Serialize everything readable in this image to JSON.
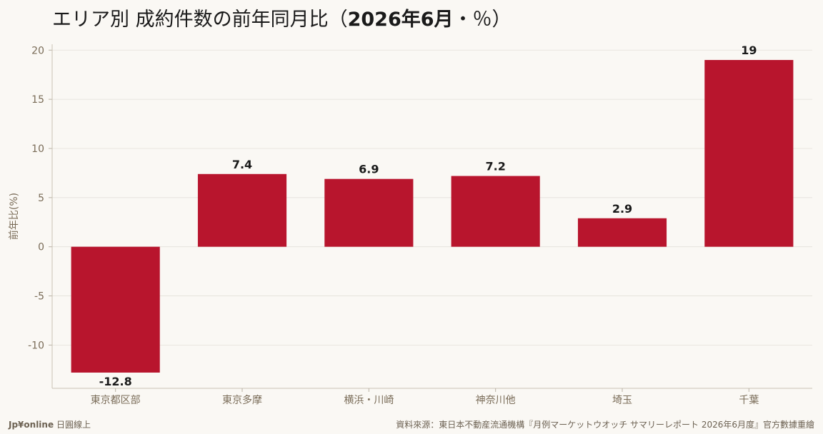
{
  "title": {
    "main": "エリア別 成約件数の前年同月比（",
    "period": "2026年6月",
    "tail": "・％）"
  },
  "footer": {
    "brand": "Jp¥online",
    "brand_suffix": "日圓線上",
    "source": "資料來源：東日本不動産流通機構『月例マーケットウオッチ サマリーレポート 2026年6月度』官方數據重繪"
  },
  "colors": {
    "bar": "#b8152d",
    "background": "#faf8f4",
    "grid": "#e3e0d9",
    "axis_text": "#7a6c58"
  },
  "chart_data": {
    "type": "bar",
    "categories": [
      "東京都区部",
      "東京多摩",
      "横浜・川崎",
      "神奈川他",
      "埼玉",
      "千葉"
    ],
    "values": [
      -12.8,
      7.4,
      6.9,
      7.2,
      2.9,
      19
    ],
    "value_labels": [
      "-12.8",
      "7.4",
      "6.9",
      "7.2",
      "2.9",
      "19"
    ],
    "ylabel": "前年比(%)",
    "xlabel": "",
    "ylim": [
      -14.4,
      20.6
    ],
    "yticks": [
      -10,
      -5,
      0,
      5,
      10,
      15,
      20
    ],
    "ytick_labels": [
      "-10",
      "-5",
      "0",
      "5",
      "10",
      "15",
      "20"
    ],
    "grid": true,
    "legend": "none"
  }
}
